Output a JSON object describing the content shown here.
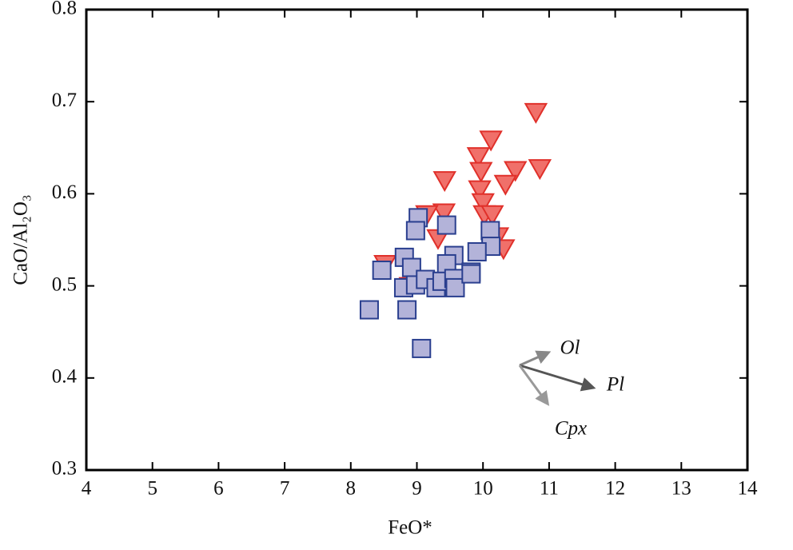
{
  "chart_data": {
    "type": "scatter",
    "xlabel": "FeO*",
    "ylabel": "CaO/Al₂O₃",
    "xlim": [
      4,
      14
    ],
    "ylim": [
      0.3,
      0.8
    ],
    "xticks": [
      4,
      5,
      6,
      7,
      8,
      9,
      10,
      11,
      12,
      13,
      14
    ],
    "yticks": [
      0.3,
      0.4,
      0.5,
      0.6,
      0.7,
      0.8
    ],
    "series": [
      {
        "marker": "triangle-down",
        "color": "#f0706a",
        "x": [
          10.8,
          10.12,
          9.93,
          10.86,
          10.49,
          9.97,
          10.34,
          9.42,
          9.95,
          10.0,
          9.41,
          9.15,
          10.02,
          10.14,
          9.32,
          10.22,
          10.31,
          8.52,
          8.9
        ],
        "values": [
          0.689,
          0.659,
          0.641,
          0.628,
          0.626,
          0.625,
          0.611,
          0.615,
          0.605,
          0.591,
          0.58,
          0.578,
          0.578,
          0.578,
          0.552,
          0.554,
          0.541,
          0.524,
          0.5
        ]
      },
      {
        "marker": "square",
        "color": "#b3b3d9",
        "x": [
          8.28,
          9.07,
          8.85,
          8.47,
          8.81,
          9.02,
          8.98,
          9.45,
          10.11,
          10.12,
          9.91,
          9.56,
          9.45,
          8.92,
          9.82,
          8.8,
          8.98,
          9.13,
          9.29,
          9.38,
          9.56,
          9.58,
          9.82
        ],
        "values": [
          0.474,
          0.432,
          0.474,
          0.517,
          0.531,
          0.574,
          0.56,
          0.566,
          0.56,
          0.543,
          0.537,
          0.533,
          0.524,
          0.52,
          0.515,
          0.498,
          0.501,
          0.507,
          0.498,
          0.505,
          0.508,
          0.498,
          0.513
        ]
      }
    ],
    "annotations": [
      "Ol",
      "Pl",
      "Cpx"
    ]
  }
}
